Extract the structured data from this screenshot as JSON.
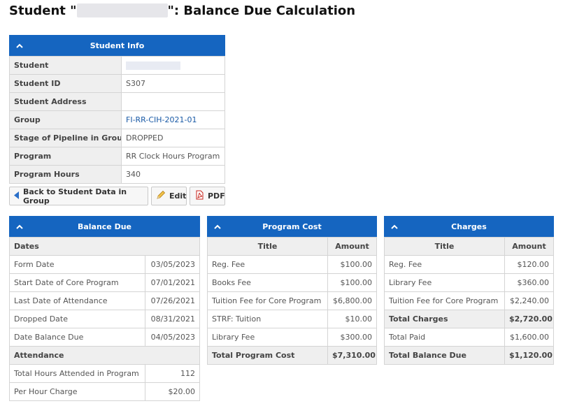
{
  "page": {
    "title_prefix": "Student \"",
    "title_suffix": "\": Balance Due Calculation"
  },
  "student_info": {
    "header": "Student Info",
    "rows": [
      {
        "label": "Student",
        "value": ""
      },
      {
        "label": "Student ID",
        "value": "S307"
      },
      {
        "label": "Student Address",
        "value": ""
      },
      {
        "label": "Group",
        "value": "FI-RR-CIH-2021-01"
      },
      {
        "label": "Stage of Pipeline in Group",
        "value": "DROPPED"
      },
      {
        "label": "Program",
        "value": "RR Clock Hours Program"
      },
      {
        "label": "Program Hours",
        "value": "340"
      }
    ]
  },
  "actions": {
    "back_label": "Back to Student Data in Group",
    "edit_label": "Edit",
    "pdf_label": "PDF"
  },
  "balance_due": {
    "header": "Balance Due",
    "dates_section": "Dates",
    "dates": [
      {
        "label": "Form Date",
        "value": "03/05/2023"
      },
      {
        "label": "Start Date of Core Program",
        "value": "07/01/2021"
      },
      {
        "label": "Last Date of Attendance",
        "value": "07/26/2021"
      },
      {
        "label": "Dropped Date",
        "value": "08/31/2021"
      },
      {
        "label": "Date Balance Due",
        "value": "04/05/2023"
      }
    ],
    "attendance_section": "Attendance",
    "attendance": [
      {
        "label": "Total Hours Attended in Program",
        "value": "112"
      },
      {
        "label": "Per Hour Charge",
        "value": "$20.00"
      }
    ]
  },
  "program_cost": {
    "header": "Program Cost",
    "col_title": "Title",
    "col_amount": "Amount",
    "rows": [
      {
        "title": "Reg. Fee",
        "amount": "$100.00"
      },
      {
        "title": "Books Fee",
        "amount": "$100.00"
      },
      {
        "title": "Tuition Fee for Core Program",
        "amount": "$6,800.00"
      },
      {
        "title": "STRF: Tuition",
        "amount": "$10.00"
      },
      {
        "title": "Library Fee",
        "amount": "$300.00"
      }
    ],
    "total": {
      "title": "Total Program Cost",
      "amount": "$7,310.00"
    }
  },
  "charges": {
    "header": "Charges",
    "col_title": "Title",
    "col_amount": "Amount",
    "rows": [
      {
        "title": "Reg. Fee",
        "amount": "$120.00"
      },
      {
        "title": "Library Fee",
        "amount": "$360.00"
      },
      {
        "title": "Tuition Fee for Core Program",
        "amount": "$2,240.00"
      }
    ],
    "total_charges": {
      "title": "Total Charges",
      "amount": "$2,720.00"
    },
    "total_paid": {
      "title": "Total Paid",
      "amount": "$1,600.00"
    },
    "total_balance": {
      "title": "Total Balance Due",
      "amount": "$1,120.00"
    }
  },
  "colors": {
    "header_blue": "#1565c0",
    "link_blue": "#1a5aa6"
  }
}
